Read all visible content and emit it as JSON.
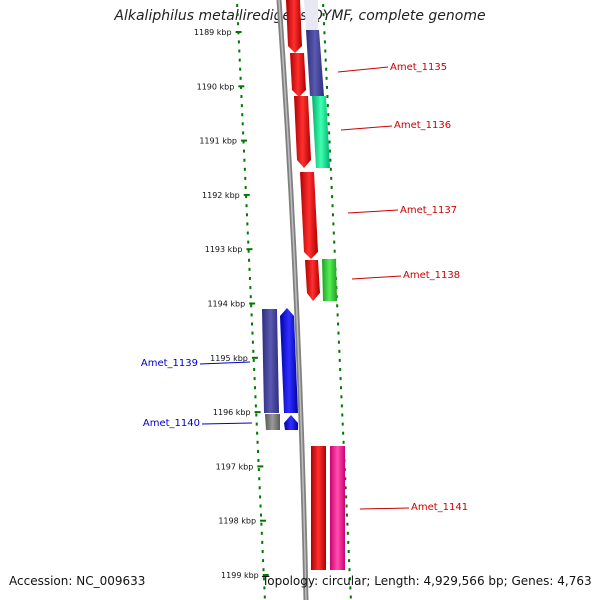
{
  "title": "Alkaliphilus metalliredigens QYMF, complete genome",
  "footer": {
    "accession": "Accession: NC_009633",
    "topology": "Topology: circular; Length: 4,929,566 bp; Genes: 4,763"
  },
  "ticks": [
    "1189 kbp",
    "1190 kbp",
    "1191 kbp",
    "1192 kbp",
    "1193 kbp",
    "1194 kbp",
    "1195 kbp",
    "1196 kbp",
    "1197 kbp",
    "1198 kbp",
    "1199 kbp"
  ],
  "genes_right": [
    {
      "name": "Amet_1135",
      "color": "#cc0000"
    },
    {
      "name": "Amet_1136",
      "color": "#cc0000"
    },
    {
      "name": "Amet_1137",
      "color": "#cc0000"
    },
    {
      "name": "Amet_1138",
      "color": "#cc0000"
    },
    {
      "name": "Amet_1141",
      "color": "#cc0000"
    }
  ],
  "genes_left": [
    {
      "name": "Amet_1139",
      "color": "#0000cc"
    },
    {
      "name": "Amet_1140",
      "color": "#0000cc"
    }
  ],
  "colors": {
    "forward_cds": "#ee0000",
    "reverse_cds": "#0000ff",
    "cog_navy": "#3d3d99",
    "cog_teal": "#00dd88",
    "cog_green": "#33cc33",
    "cog_pink": "#ff1493",
    "backbone": "#808080",
    "tick_mark": "#007700"
  }
}
